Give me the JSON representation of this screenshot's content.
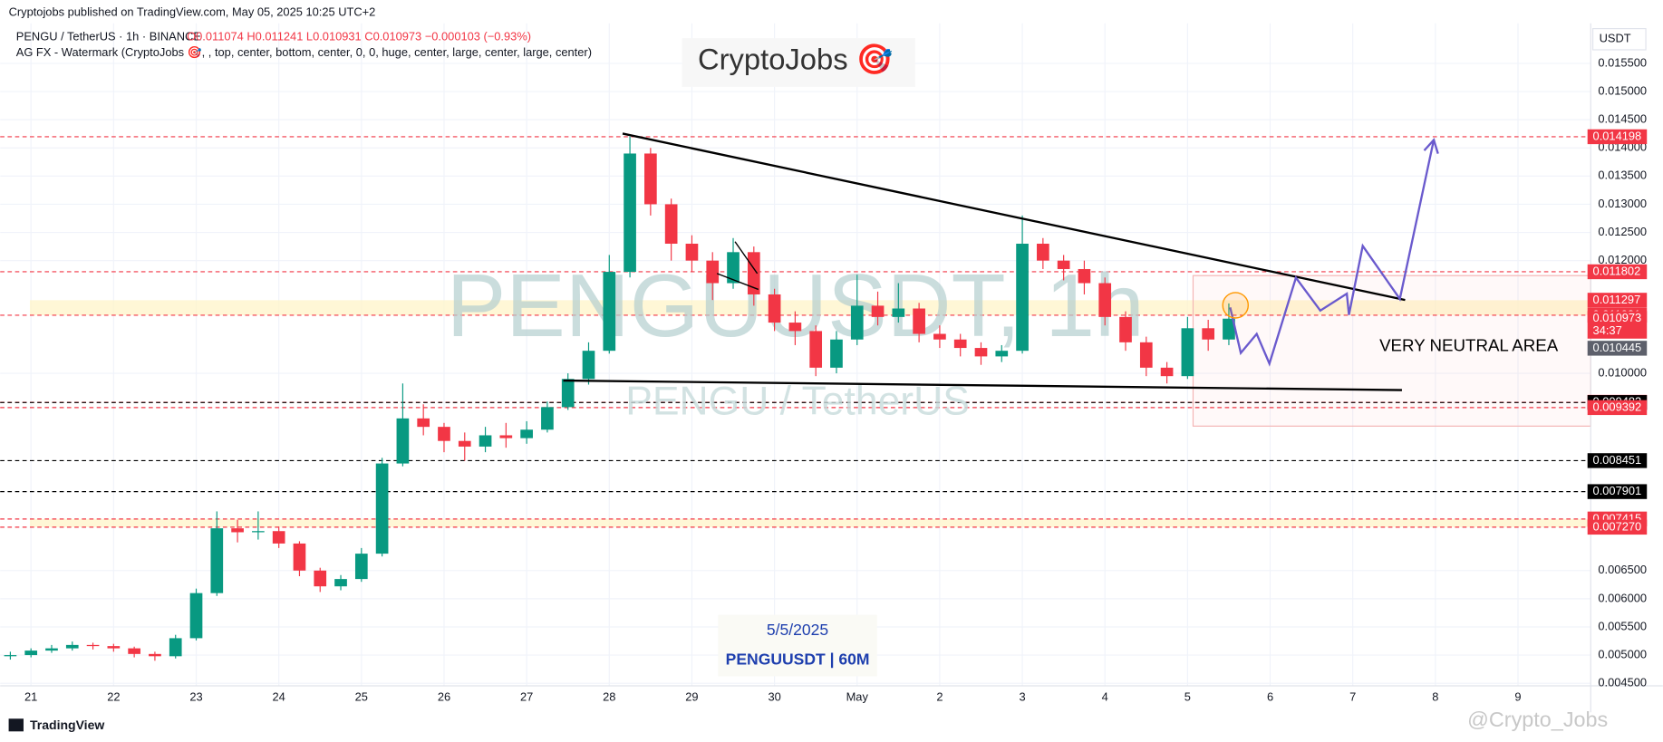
{
  "header": {
    "publisher": "Cryptojobs published on TradingView.com, May 05, 2025 10:25 UTC+2",
    "symbol": "PENGU / TetherUS · 1h · BINANCE",
    "ohlc_line": "O0.011074 H0.011241 L0.010931 C0.010973 −0.000103 (−0.93%)",
    "indicator": "AG FX - Watermark (CryptoJobs 🎯, , top, center, bottom, center, 0, 0, huge, center, large, center, large, center)",
    "currency": "USDT"
  },
  "overlay": {
    "logo": "CryptoJobs 🎯",
    "watermark_big": "PENGUUSDT, 1h",
    "watermark_small": "PENGU / TetherUS",
    "annotation": "VERY NEUTRAL AREA",
    "date_box": "5/5/2025",
    "pair_box": "PENGUUSDT | 60M"
  },
  "footer": {
    "brand": "TradingView",
    "author": "@Crypto_Jobs"
  },
  "chart_data": {
    "type": "candlestick",
    "up_color": "#089981",
    "down_color": "#f23645",
    "grid": true,
    "xlim": [
      -0.27,
      18.88
    ],
    "ylim": [
      0.0045,
      0.01606
    ],
    "xticks": [
      {
        "value": 0,
        "label": "21"
      },
      {
        "value": 1,
        "label": "22"
      },
      {
        "value": 2,
        "label": "23"
      },
      {
        "value": 3,
        "label": "24"
      },
      {
        "value": 4,
        "label": "25"
      },
      {
        "value": 5,
        "label": "26"
      },
      {
        "value": 6,
        "label": "27"
      },
      {
        "value": 7,
        "label": "28"
      },
      {
        "value": 8,
        "label": "29"
      },
      {
        "value": 9,
        "label": "30"
      },
      {
        "value": 10,
        "label": "May"
      },
      {
        "value": 11,
        "label": "2"
      },
      {
        "value": 12,
        "label": "3"
      },
      {
        "value": 13,
        "label": "4"
      },
      {
        "value": 14,
        "label": "5"
      },
      {
        "value": 15,
        "label": "6"
      },
      {
        "value": 16,
        "label": "7"
      },
      {
        "value": 17,
        "label": "8"
      },
      {
        "value": 18,
        "label": "9"
      }
    ],
    "yticks": [
      {
        "value": 0.0155,
        "label": "0.015500"
      },
      {
        "value": 0.015,
        "label": "0.015000"
      },
      {
        "value": 0.0145,
        "label": "0.014500"
      },
      {
        "value": 0.014,
        "label": "0.014000"
      },
      {
        "value": 0.0135,
        "label": "0.013500"
      },
      {
        "value": 0.013,
        "label": "0.013000"
      },
      {
        "value": 0.0125,
        "label": "0.012500"
      },
      {
        "value": 0.012,
        "label": "0.012000"
      },
      {
        "value": 0.01,
        "label": "0.010000"
      },
      {
        "value": 0.0065,
        "label": "0.006500"
      },
      {
        "value": 0.006,
        "label": "0.006000"
      },
      {
        "value": 0.0055,
        "label": "0.005500"
      },
      {
        "value": 0.005,
        "label": "0.005000"
      },
      {
        "value": 0.0045,
        "label": "0.004500"
      }
    ],
    "levels": [
      {
        "value": 0.014198,
        "label": "0.014198",
        "color": "#f23645",
        "line": true
      },
      {
        "value": 0.011802,
        "label": "0.011802",
        "color": "#f23645",
        "line": true
      },
      {
        "value": 0.011297,
        "label": "0.011297",
        "color": "#f23645",
        "line": false
      },
      {
        "value": 0.011031,
        "label": "0.011031",
        "color": "#f23645",
        "line": true
      },
      {
        "value": 0.010973,
        "label": "0.010973",
        "color": "#f23645",
        "line": false,
        "countdown": "34:37"
      },
      {
        "value": 0.010445,
        "label": "0.010445",
        "color": "#5d606b",
        "line": false
      },
      {
        "value": 0.009486,
        "label": "0.009486",
        "color": "#f23645",
        "line": true
      },
      {
        "value": 0.009482,
        "label": "0.009482",
        "color": "#000000",
        "line": true
      },
      {
        "value": 0.009392,
        "label": "0.009392",
        "color": "#f23645",
        "line": true
      },
      {
        "value": 0.008451,
        "label": "0.008451",
        "color": "#000000",
        "line": true
      },
      {
        "value": 0.007901,
        "label": "0.007901",
        "color": "#000000",
        "line": true
      },
      {
        "value": 0.007415,
        "label": "0.007415",
        "color": "#f23645",
        "line": true
      },
      {
        "value": 0.00727,
        "label": "0.007270",
        "color": "#f23645",
        "line": true
      }
    ],
    "x": [
      -0.25,
      0,
      0.25,
      0.5,
      0.75,
      1,
      1.25,
      1.5,
      1.75,
      2,
      2.25,
      2.5,
      2.75,
      3,
      3.25,
      3.5,
      3.75,
      4,
      4.25,
      4.5,
      4.75,
      5,
      5.25,
      5.5,
      5.75,
      6,
      6.25,
      6.5,
      6.75,
      7,
      7.25,
      7.5,
      7.75,
      8,
      8.25,
      8.5,
      8.75,
      9,
      9.25,
      9.5,
      9.75,
      10,
      10.25,
      10.5,
      10.75,
      11,
      11.25,
      11.5,
      11.75,
      12,
      12.25,
      12.5,
      12.75,
      13,
      13.25,
      13.5,
      13.75,
      14,
      14.25,
      14.5
    ],
    "ohlc": [
      [
        0.00498,
        0.00506,
        0.00492,
        0.005
      ],
      [
        0.005,
        0.00512,
        0.00496,
        0.00508
      ],
      [
        0.00508,
        0.00518,
        0.00504,
        0.00512
      ],
      [
        0.00512,
        0.00524,
        0.00508,
        0.00518
      ],
      [
        0.00518,
        0.00522,
        0.0051,
        0.00516
      ],
      [
        0.00516,
        0.0052,
        0.00506,
        0.00512
      ],
      [
        0.00512,
        0.00515,
        0.00496,
        0.00502
      ],
      [
        0.00502,
        0.00506,
        0.0049,
        0.00498
      ],
      [
        0.00498,
        0.00536,
        0.00494,
        0.0053
      ],
      [
        0.0053,
        0.00618,
        0.00526,
        0.0061
      ],
      [
        0.0061,
        0.00755,
        0.00605,
        0.00725
      ],
      [
        0.00725,
        0.0074,
        0.007,
        0.00718
      ],
      [
        0.00718,
        0.00755,
        0.00705,
        0.0072
      ],
      [
        0.0072,
        0.00728,
        0.0069,
        0.00698
      ],
      [
        0.00698,
        0.00702,
        0.0064,
        0.0065
      ],
      [
        0.0065,
        0.00655,
        0.00612,
        0.00622
      ],
      [
        0.00622,
        0.00642,
        0.00615,
        0.00635
      ],
      [
        0.00635,
        0.0069,
        0.0063,
        0.0068
      ],
      [
        0.0068,
        0.0085,
        0.00675,
        0.0084
      ],
      [
        0.0084,
        0.00982,
        0.00835,
        0.0092
      ],
      [
        0.0092,
        0.00945,
        0.0089,
        0.00905
      ],
      [
        0.00905,
        0.00912,
        0.0086,
        0.0088
      ],
      [
        0.0088,
        0.00895,
        0.00845,
        0.0087
      ],
      [
        0.0087,
        0.00905,
        0.0086,
        0.0089
      ],
      [
        0.0089,
        0.00912,
        0.00868,
        0.00885
      ],
      [
        0.00885,
        0.00915,
        0.00875,
        0.009
      ],
      [
        0.009,
        0.0095,
        0.00895,
        0.0094
      ],
      [
        0.0094,
        0.01,
        0.00935,
        0.0099
      ],
      [
        0.0099,
        0.01055,
        0.0098,
        0.0104
      ],
      [
        0.0104,
        0.0121,
        0.01035,
        0.0118
      ],
      [
        0.0118,
        0.0142,
        0.0117,
        0.0139
      ],
      [
        0.0139,
        0.014,
        0.0128,
        0.013
      ],
      [
        0.013,
        0.0131,
        0.012,
        0.0123
      ],
      [
        0.0123,
        0.01245,
        0.0118,
        0.012
      ],
      [
        0.012,
        0.01215,
        0.0113,
        0.0116
      ],
      [
        0.0116,
        0.0124,
        0.0115,
        0.01215
      ],
      [
        0.01215,
        0.01225,
        0.0112,
        0.0114
      ],
      [
        0.0114,
        0.0115,
        0.01075,
        0.0109
      ],
      [
        0.0109,
        0.0111,
        0.0105,
        0.01075
      ],
      [
        0.01075,
        0.01085,
        0.00995,
        0.0101
      ],
      [
        0.0101,
        0.01075,
        0.01,
        0.0106
      ],
      [
        0.0106,
        0.01175,
        0.0105,
        0.0112
      ],
      [
        0.0112,
        0.01145,
        0.01085,
        0.011
      ],
      [
        0.011,
        0.0116,
        0.0109,
        0.01115
      ],
      [
        0.01115,
        0.01125,
        0.01055,
        0.0107
      ],
      [
        0.0107,
        0.01085,
        0.01045,
        0.0106
      ],
      [
        0.0106,
        0.0107,
        0.0103,
        0.01045
      ],
      [
        0.01045,
        0.01055,
        0.01015,
        0.0103
      ],
      [
        0.0103,
        0.0105,
        0.0102,
        0.0104
      ],
      [
        0.0104,
        0.0128,
        0.01035,
        0.0123
      ],
      [
        0.0123,
        0.0124,
        0.01185,
        0.012
      ],
      [
        0.012,
        0.0121,
        0.01165,
        0.01185
      ],
      [
        0.01185,
        0.012,
        0.0114,
        0.0116
      ],
      [
        0.0116,
        0.0117,
        0.01085,
        0.011
      ],
      [
        0.011,
        0.0111,
        0.0104,
        0.01055
      ],
      [
        0.01055,
        0.01065,
        0.00995,
        0.0101
      ],
      [
        0.0101,
        0.0102,
        0.00982,
        0.00995
      ],
      [
        0.00995,
        0.011,
        0.0099,
        0.0108
      ],
      [
        0.0108,
        0.01095,
        0.0104,
        0.0106
      ],
      [
        0.0106,
        0.01124,
        0.0105,
        0.01097
      ]
    ]
  }
}
